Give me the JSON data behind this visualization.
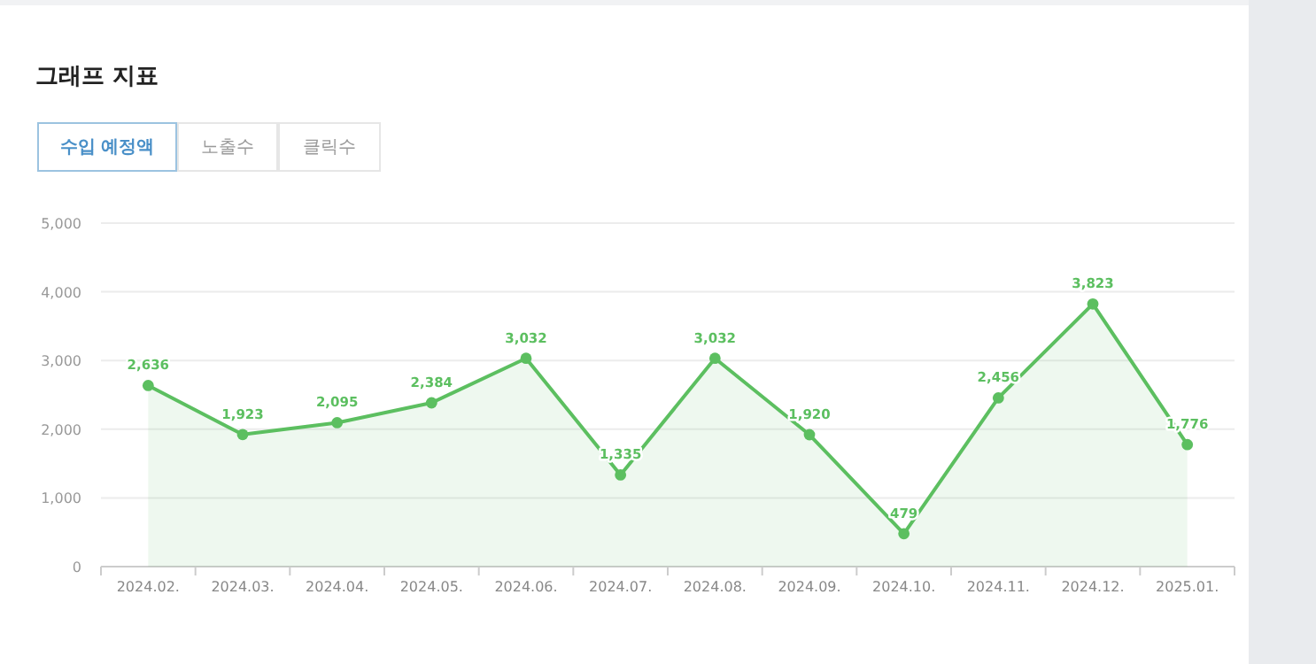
{
  "chart_data": {
    "type": "area",
    "title": "그래프 지표",
    "annotations": [
      "수입 예정액",
      "노출수",
      "클릭수"
    ],
    "categories": [
      "2024.02.",
      "2024.03.",
      "2024.04.",
      "2024.05.",
      "2024.06.",
      "2024.07.",
      "2024.08.",
      "2024.09.",
      "2024.10.",
      "2024.11.",
      "2024.12.",
      "2025.01."
    ],
    "series": [
      {
        "color": "#5cbf60",
        "values": [
          2636,
          1923,
          2095,
          2384,
          3032,
          1335,
          3032,
          1920,
          479,
          2456,
          3823,
          1776
        ]
      }
    ],
    "ylim": [
      0,
      5000
    ],
    "yticks": [
      {
        "value": 0,
        "label": "0"
      },
      {
        "value": 1000,
        "label": "1,000"
      },
      {
        "value": 2000,
        "label": "2,000"
      },
      {
        "value": 3000,
        "label": "3,000"
      },
      {
        "value": 4000,
        "label": "4,000"
      },
      {
        "value": 5000,
        "label": "5,000"
      }
    ],
    "value_labels": [
      "2,636",
      "1,923",
      "2,095",
      "2,384",
      "3,032",
      "1,335",
      "3,032",
      "1,920",
      "479",
      "2,456",
      "3,823",
      "1,776"
    ],
    "grid": "y",
    "marker": "circle"
  }
}
